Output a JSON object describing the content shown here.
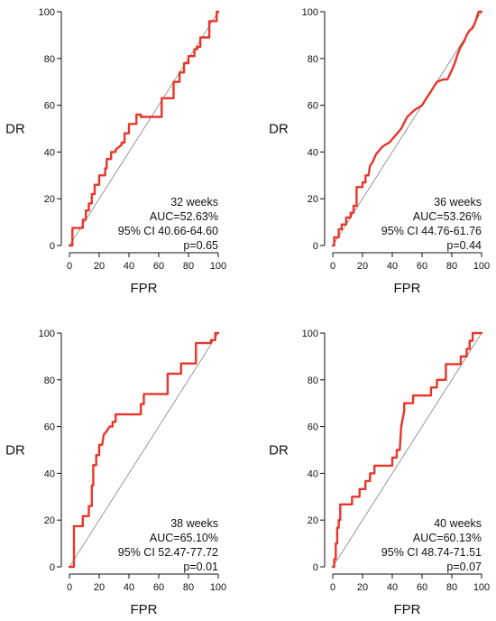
{
  "chart_data": [
    {
      "type": "line",
      "xlabel": "FPR",
      "ylabel": "DR",
      "xlim": [
        0,
        100
      ],
      "ylim": [
        0,
        100
      ],
      "xticks": [
        "0",
        "20",
        "40",
        "60",
        "80",
        "100"
      ],
      "yticks": [
        "0",
        "20",
        "40",
        "60",
        "80",
        "100"
      ],
      "annotations": [
        "32 weeks",
        "AUC=52.63%",
        "95% CI  40.66-64.60",
        "p=0.65"
      ],
      "series": [
        {
          "color": "#e8352a",
          "x": [
            0,
            2,
            2,
            9,
            9,
            11,
            11,
            13,
            13,
            15,
            15,
            17,
            17,
            20,
            20,
            24,
            24,
            25,
            25,
            28,
            28,
            31,
            31,
            35,
            35,
            37,
            37,
            40,
            40,
            45,
            45,
            48,
            48,
            62,
            62,
            70,
            70,
            74,
            74,
            77,
            77,
            80,
            80,
            84,
            84,
            86,
            86,
            88,
            88,
            94,
            94,
            99,
            99,
            100
          ],
          "y": [
            0,
            0,
            7.5,
            7.5,
            11,
            11,
            15,
            15,
            18,
            18,
            22,
            22,
            26,
            26,
            30,
            30,
            33,
            33,
            37,
            37,
            40,
            40,
            41,
            43,
            44,
            44,
            48,
            48,
            52,
            52,
            56,
            56,
            55,
            55,
            63,
            63,
            70,
            70,
            74,
            74,
            78,
            78,
            81,
            81,
            84,
            84,
            85,
            85,
            89,
            89,
            96,
            96,
            100,
            100
          ]
        }
      ]
    },
    {
      "type": "line",
      "xlabel": "FPR",
      "ylabel": "DR",
      "xlim": [
        0,
        100
      ],
      "ylim": [
        0,
        100
      ],
      "xticks": [
        "0",
        "20",
        "40",
        "60",
        "80",
        "100"
      ],
      "yticks": [
        "0",
        "20",
        "40",
        "60",
        "80",
        "100"
      ],
      "annotations": [
        "36 weeks",
        "AUC=53.26%",
        "95% CI 44.76-61.76",
        "p=0.44"
      ],
      "series": [
        {
          "color": "#e8352a",
          "x": [
            0,
            1,
            1,
            4,
            4,
            6,
            6,
            9,
            9,
            12,
            12,
            14,
            14,
            16,
            16,
            20,
            20,
            22,
            22,
            24,
            25,
            27,
            29,
            33,
            35,
            38,
            42,
            46,
            50,
            55,
            60,
            62,
            64,
            67,
            70,
            74,
            77,
            80,
            82,
            84,
            86,
            88,
            90,
            92,
            94,
            96,
            98,
            100
          ],
          "y": [
            0,
            0,
            3.5,
            3.5,
            7,
            7,
            9,
            9,
            12,
            12,
            14,
            14,
            17,
            17,
            25,
            25,
            27,
            27,
            30,
            30,
            34,
            36,
            39,
            42,
            43,
            44,
            47,
            50,
            55,
            58,
            60,
            62,
            64,
            67,
            70,
            71,
            71,
            75,
            78,
            82,
            85,
            87,
            90,
            92,
            93,
            96,
            100,
            100
          ]
        }
      ]
    },
    {
      "type": "line",
      "xlabel": "FPR",
      "ylabel": "DR",
      "xlim": [
        0,
        100
      ],
      "ylim": [
        0,
        100
      ],
      "xticks": [
        "0",
        "20",
        "40",
        "60",
        "80",
        "100"
      ],
      "yticks": [
        "0",
        "20",
        "40",
        "60",
        "80",
        "100"
      ],
      "annotations": [
        "38 weeks",
        "AUC=65.10%",
        "95% CI 52.47-77.72",
        "p=0.01"
      ],
      "series": [
        {
          "color": "#e8352a",
          "x": [
            0,
            3,
            3,
            9,
            9,
            13,
            13,
            15,
            15,
            16,
            16,
            18,
            18,
            20,
            20,
            22,
            23,
            25,
            27,
            29,
            29,
            31,
            31,
            48,
            48,
            50,
            50,
            66,
            66,
            75,
            75,
            85,
            85,
            95,
            95,
            98,
            98,
            100
          ],
          "y": [
            0,
            0,
            17.4,
            17.4,
            21.7,
            21.7,
            26,
            26,
            34.8,
            34.8,
            43.5,
            43.5,
            47.8,
            47.8,
            52.2,
            52.2,
            56.5,
            58,
            60,
            60,
            62,
            62,
            65.2,
            65.2,
            69.6,
            69.6,
            73.9,
            73.9,
            82.6,
            82.6,
            87,
            87,
            95.7,
            95.7,
            97,
            97,
            100,
            100
          ]
        }
      ]
    },
    {
      "type": "line",
      "xlabel": "FPR",
      "ylabel": "DR",
      "xlim": [
        0,
        100
      ],
      "ylim": [
        0,
        100
      ],
      "xticks": [
        "0",
        "20",
        "40",
        "60",
        "80",
        "100"
      ],
      "yticks": [
        "0",
        "20",
        "40",
        "60",
        "80",
        "100"
      ],
      "annotations": [
        "40 weeks",
        "AUC=60.13%",
        "95% CI 48.74-71.51",
        "p=0.07"
      ],
      "series": [
        {
          "color": "#e8352a",
          "x": [
            0,
            1,
            1,
            2,
            2,
            3,
            3,
            4,
            4,
            5,
            5,
            10,
            10,
            13,
            13,
            18,
            18,
            22,
            22,
            25,
            25,
            28,
            28,
            32,
            32,
            40,
            40,
            43,
            43,
            45,
            46,
            48,
            48,
            50,
            52,
            54,
            54,
            66,
            66,
            70,
            70,
            76,
            76,
            82,
            82,
            86,
            86,
            90,
            90,
            92,
            92,
            94,
            94,
            97,
            97,
            100
          ],
          "y": [
            0,
            0,
            3.3,
            3.3,
            10,
            10,
            16.7,
            16.7,
            20,
            20,
            26.7,
            26.7,
            26.7,
            26.7,
            30,
            30,
            33.3,
            33.3,
            36.7,
            36.7,
            40,
            40,
            43.3,
            43.3,
            43.3,
            43.3,
            46.7,
            46.7,
            50,
            50,
            60,
            66.7,
            70,
            70,
            70,
            70,
            73.3,
            73.3,
            76.7,
            76.7,
            80,
            80,
            86.7,
            86.7,
            86.7,
            86.7,
            90,
            90,
            93.3,
            93.3,
            96.7,
            96.7,
            100,
            100,
            100,
            100
          ]
        }
      ]
    }
  ]
}
